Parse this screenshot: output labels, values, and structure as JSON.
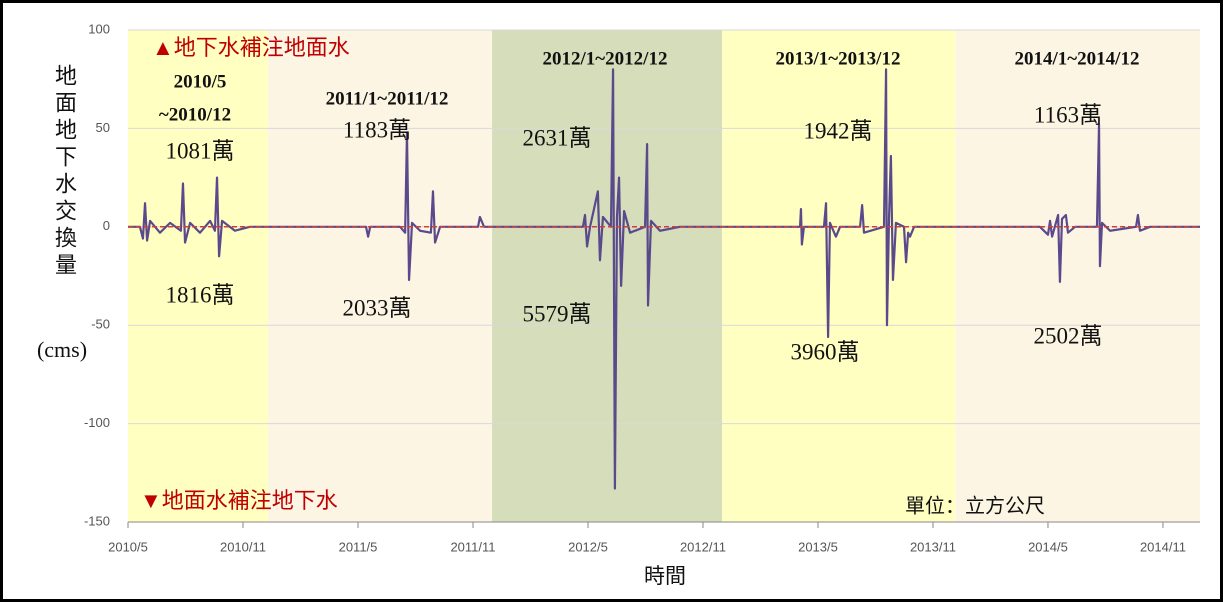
{
  "chart_data": {
    "type": "line",
    "y_label": "地面地下水交換量",
    "y_unit": "(cms)",
    "x_label": "時間",
    "note_up": "▲地下水補注地面水",
    "note_down": "▼地面水補注地下水",
    "unit_note": "單位：立方公尺",
    "ylim": [
      -150,
      100
    ],
    "yticks": [
      -150,
      -100,
      -50,
      0,
      50,
      100
    ],
    "grid": true,
    "xlim": [
      2010.333,
      2014.994
    ],
    "xticks": [
      {
        "value": 2010.333,
        "label": "2010/5"
      },
      {
        "value": 2010.833,
        "label": "2010/11"
      },
      {
        "value": 2011.333,
        "label": "2011/5"
      },
      {
        "value": 2011.833,
        "label": "2011/11"
      },
      {
        "value": 2012.333,
        "label": "2012/5"
      },
      {
        "value": 2012.833,
        "label": "2012/11"
      },
      {
        "value": 2013.333,
        "label": "2013/5"
      },
      {
        "value": 2013.833,
        "label": "2013/11"
      },
      {
        "value": 2014.333,
        "label": "2014/5"
      },
      {
        "value": 2014.833,
        "label": "2014/11"
      }
    ],
    "baseline": {
      "value": 0,
      "color": "#d0403a"
    },
    "color": "#5a4a8c",
    "periods": [
      {
        "label": [
          "2010/5",
          "~2010/12"
        ],
        "start": 2010.333,
        "end": 2010.942,
        "color": "#ffffc2",
        "upper": "1081萬",
        "lower": "1816萬"
      },
      {
        "label": [
          "2011/1~2011/12"
        ],
        "start": 2010.942,
        "end": 2011.916,
        "color": "#fcf5e4",
        "upper": "1183萬",
        "lower": "2033萬"
      },
      {
        "label": [
          "2012/1~2012/12"
        ],
        "start": 2011.916,
        "end": 2012.916,
        "color": "#d5ddba",
        "upper": "2631萬",
        "lower": "5579萬"
      },
      {
        "label": [
          "2013/1~2013/12"
        ],
        "start": 2012.916,
        "end": 2013.93,
        "color": "#ffffc2",
        "upper": "1942萬",
        "lower": "3960萬"
      },
      {
        "label": [
          "2014/1~2014/12"
        ],
        "start": 2013.93,
        "end": 2014.994,
        "color": "#fcf5e4",
        "upper": "1163萬",
        "lower": "2502萬"
      }
    ],
    "x": [
      2010.333,
      2010.385,
      2010.398,
      2010.407,
      2010.416,
      2010.429,
      2010.472,
      2010.516,
      2010.563,
      2010.572,
      2010.581,
      2010.603,
      2010.646,
      2010.69,
      2010.711,
      2010.72,
      2010.729,
      2010.742,
      2010.798,
      2010.863,
      2011.037,
      2011.368,
      2011.377,
      2011.386,
      2011.516,
      2011.538,
      2011.546,
      2011.555,
      2011.568,
      2011.603,
      2011.65,
      2011.659,
      2011.668,
      2011.69,
      2011.855,
      2011.863,
      2011.881,
      2012.211,
      2012.311,
      2012.32,
      2012.329,
      2012.342,
      2012.376,
      2012.385,
      2012.398,
      2012.433,
      2012.442,
      2012.45,
      2012.459,
      2012.468,
      2012.477,
      2012.49,
      2012.516,
      2012.581,
      2012.59,
      2012.594,
      2012.607,
      2012.646,
      2012.733,
      2013.255,
      2013.259,
      2013.263,
      2013.272,
      2013.359,
      2013.368,
      2013.377,
      2013.385,
      2013.411,
      2013.429,
      2013.516,
      2013.525,
      2013.533,
      2013.62,
      2013.629,
      2013.633,
      2013.642,
      2013.65,
      2013.659,
      2013.672,
      2013.707,
      2013.716,
      2013.725,
      2013.733,
      2013.751,
      2014.298,
      2014.333,
      2014.342,
      2014.351,
      2014.377,
      2014.385,
      2014.394,
      2014.411,
      2014.42,
      2014.451,
      2014.546,
      2014.555,
      2014.559,
      2014.568,
      2014.603,
      2014.716,
      2014.724,
      2014.733,
      2014.777,
      2014.994
    ],
    "values": [
      0,
      0,
      -6,
      12,
      -7,
      3,
      -3,
      2,
      -2,
      22,
      -8,
      2,
      -3,
      3,
      -2,
      25,
      -15,
      3,
      -2,
      0,
      0,
      0,
      -5,
      0,
      0,
      -3,
      48,
      -27,
      2,
      -2,
      -3,
      18,
      -8,
      0,
      0,
      5,
      0,
      0,
      0,
      6,
      -10,
      0,
      18,
      -17,
      5,
      0,
      80,
      -133,
      5,
      25,
      -30,
      8,
      -3,
      0,
      42,
      -40,
      3,
      -2,
      0,
      0,
      9,
      -9,
      0,
      0,
      12,
      -56,
      2,
      -5,
      0,
      0,
      11,
      -3,
      0,
      80,
      -50,
      5,
      36,
      -27,
      2,
      0,
      -18,
      -3,
      -5,
      0,
      0,
      -4,
      3,
      -5,
      6,
      -28,
      4,
      6,
      -3,
      0,
      0,
      52,
      -20,
      2,
      -2,
      0,
      6,
      -2,
      0,
      0
    ]
  }
}
